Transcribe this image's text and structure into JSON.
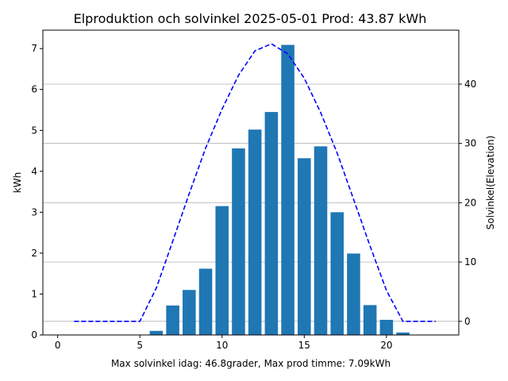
{
  "chart_data": {
    "type": "bar",
    "title": "Elproduktion och solvinkel 2025-05-01 Prod: 43.87 kWh",
    "xlabel": "Max solvinkel idag: 46.8grader, Max prod timme: 7.09kWh",
    "ylabel": "kWh",
    "y2label": "Solvinkel(Elevation)",
    "xlim": [
      -0.9,
      24.4
    ],
    "ylim": [
      0,
      7.45
    ],
    "y2lim": [
      -2.3,
      49.1
    ],
    "xticks": [
      0,
      5,
      10,
      15,
      20
    ],
    "yticks": [
      0,
      1,
      2,
      3,
      4,
      5,
      6,
      7
    ],
    "y2ticks": [
      0,
      10,
      20,
      30,
      40
    ],
    "grid": "horizontal on secondary axis",
    "colors": {
      "bars": "#1f77b4",
      "line": "#0000ff",
      "y2label": "#0000ff",
      "grid": "#b0b0b0"
    },
    "series": [
      {
        "kind": "bar",
        "axis": "left",
        "x": [
          6,
          7,
          8,
          9,
          10,
          11,
          12,
          13,
          14,
          15,
          16,
          17,
          18,
          19,
          20,
          21
        ],
        "values": [
          0.1,
          0.72,
          1.1,
          1.62,
          3.15,
          4.56,
          5.02,
          5.45,
          7.09,
          4.32,
          4.61,
          3.0,
          1.99,
          0.73,
          0.37,
          0.06
        ]
      },
      {
        "kind": "line",
        "style": "dashed",
        "axis": "right",
        "x": [
          1,
          2,
          3,
          4,
          5,
          6,
          7,
          8,
          9,
          10,
          11,
          12,
          13,
          14,
          15,
          16,
          17,
          18,
          19,
          20,
          21,
          22,
          23
        ],
        "values": [
          0,
          0,
          0,
          0,
          0,
          5.6,
          13.5,
          21.5,
          29.2,
          35.8,
          41.5,
          45.6,
          46.8,
          45.1,
          41.0,
          35.2,
          28.4,
          20.6,
          12.7,
          5.2,
          0,
          0,
          0
        ]
      }
    ]
  }
}
